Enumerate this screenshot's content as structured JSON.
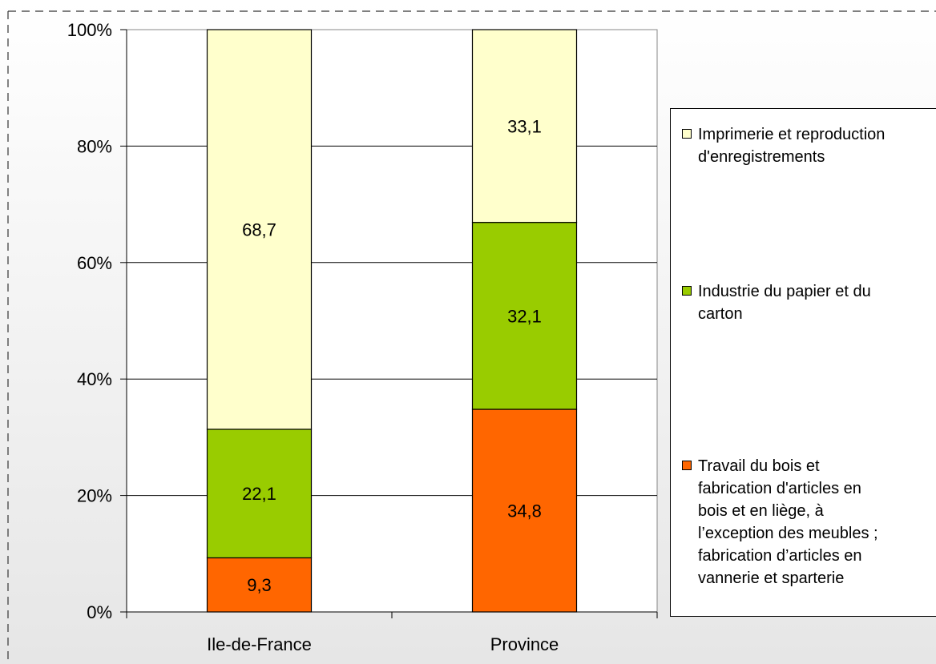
{
  "chart_data": {
    "type": "bar",
    "stacked": true,
    "percent": true,
    "categories": [
      "Ile-de-France",
      "Province"
    ],
    "series": [
      {
        "name": "Travail du bois et fabrication d'articles en bois et en liège, à l’exception des meubles ; fabrication d’articles en vannerie et sparterie",
        "values": [
          9.3,
          34.8
        ],
        "labels": [
          "9,3",
          "34,8"
        ],
        "color": "#ff6600"
      },
      {
        "name": "Industrie du papier et du carton",
        "values": [
          22.1,
          32.1
        ],
        "labels": [
          "22,1",
          "32,1"
        ],
        "color": "#99cc00"
      },
      {
        "name": "Imprimerie et reproduction d'enregistrements",
        "values": [
          68.7,
          33.1
        ],
        "labels": [
          "68,7",
          "33,1"
        ],
        "color": "#ffffcc"
      }
    ],
    "y_ticks": [
      "0%",
      "20%",
      "40%",
      "60%",
      "80%",
      "100%"
    ],
    "ylim": [
      0,
      100
    ],
    "grid": true,
    "legend_position": "right"
  },
  "legend": {
    "items": [
      {
        "label": "Imprimerie et reproduction\nd'enregistrements",
        "color": "#ffffcc"
      },
      {
        "label": "Industrie du papier et du\ncarton",
        "color": "#99cc00"
      },
      {
        "label": "Travail du bois et\nfabrication d'articles en\nbois et en liège, à\nl’exception des meubles ;\nfabrication d’articles en\nvannerie et sparterie",
        "color": "#ff6600"
      }
    ]
  }
}
